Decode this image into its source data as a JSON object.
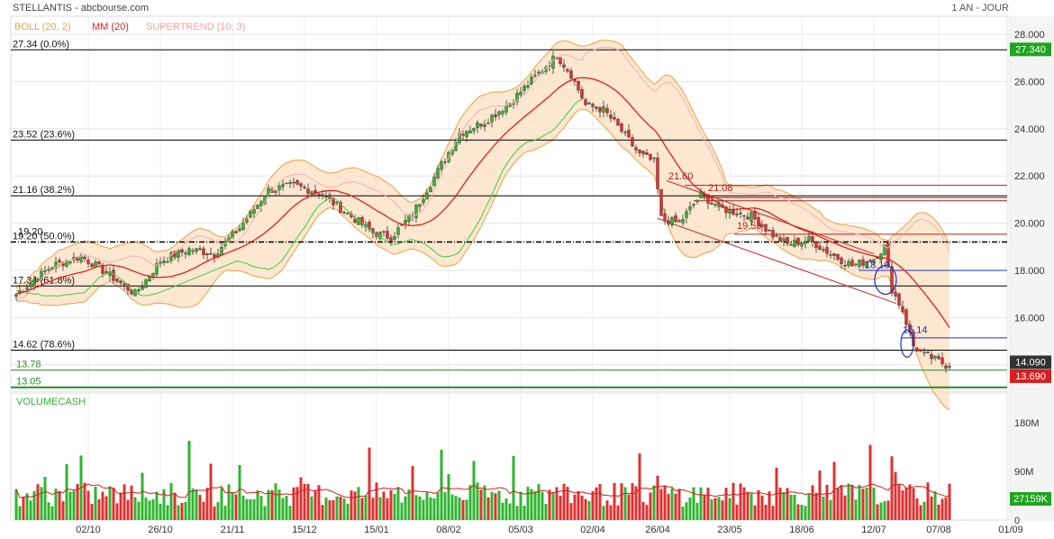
{
  "header": {
    "title": "STELLANTIS - abcbourse.com",
    "period": "1 AN - JOUR",
    "legend": [
      {
        "label": "BOLL (20, 2)",
        "color": "#f0a040"
      },
      {
        "label": "MM (20)",
        "color": "#e02020"
      },
      {
        "label": "SUPERTREND (10, 3)",
        "color": "#f4b0b0"
      }
    ]
  },
  "colors": {
    "up": "#2fb52f",
    "down": "#e03030",
    "fib": "#000000",
    "boll_fill": "#fbe3c8",
    "boll_line": "#f0a040",
    "mm": "#e02020",
    "supertrend": "#f4b0b0",
    "supertrend_up": "#3ccf3c",
    "support": "#2a8a2a",
    "annot_blue": "#2030c0"
  },
  "chart_data": {
    "type": "candlestick",
    "y_axis": {
      "ticks": [
        "28.000",
        "26.000",
        "24.000",
        "22.000",
        "20.000",
        "18.000",
        "16.000",
        "14.000"
      ],
      "range": [
        13.0,
        28.6
      ]
    },
    "x_axis": {
      "ticks": [
        "02/10",
        "26/10",
        "21/11",
        "15/12",
        "15/01",
        "08/02",
        "05/03",
        "02/04",
        "26/04",
        "23/05",
        "18/06",
        "12/07",
        "07/08",
        "01/09"
      ]
    },
    "fibonacci": [
      {
        "price": 27.34,
        "label": "27.34  (0.0%)"
      },
      {
        "price": 23.52,
        "label": "23.52  (23.6%)"
      },
      {
        "price": 21.16,
        "label": "21.16  (38.2%)"
      },
      {
        "price": 19.2,
        "label": "19.20  (50.0%)",
        "label2": "19.20"
      },
      {
        "price": 17.34,
        "label": "17.34  (61.8%)"
      },
      {
        "price": 14.62,
        "label": "14.62  (78.6%)"
      }
    ],
    "support_lines": [
      {
        "price": 13.78,
        "label": "13.78"
      },
      {
        "price": 13.05,
        "label": "13.05"
      }
    ],
    "annotations": [
      {
        "text": "21.60",
        "color": "#b02020"
      },
      {
        "text": "21.08",
        "color": "#b02020"
      },
      {
        "text": "19.53",
        "color": "#b02020"
      },
      {
        "text": "18.10",
        "color": "#2030c0"
      },
      {
        "text": "15.14",
        "color": "#2030c0"
      }
    ],
    "price_badges": [
      {
        "text": "27.340",
        "bg": "#1fa41f"
      },
      {
        "text": "14.090",
        "bg": "#333333"
      },
      {
        "text": "13.690",
        "bg": "#d42020"
      }
    ],
    "anchors": [
      [
        0,
        17.0
      ],
      [
        10,
        18.2
      ],
      [
        18,
        18.6
      ],
      [
        25,
        17.9
      ],
      [
        33,
        17.0
      ],
      [
        40,
        18.4
      ],
      [
        48,
        18.9
      ],
      [
        55,
        18.7
      ],
      [
        62,
        19.8
      ],
      [
        70,
        21.4
      ],
      [
        77,
        21.6
      ],
      [
        84,
        21.3
      ],
      [
        92,
        20.4
      ],
      [
        99,
        19.6
      ],
      [
        104,
        19.4
      ],
      [
        110,
        20.4
      ],
      [
        117,
        22.2
      ],
      [
        123,
        23.8
      ],
      [
        130,
        24.3
      ],
      [
        137,
        25.1
      ],
      [
        144,
        26.2
      ],
      [
        150,
        27.1
      ],
      [
        154,
        26.3
      ],
      [
        158,
        25.0
      ],
      [
        163,
        24.8
      ],
      [
        168,
        23.9
      ],
      [
        173,
        22.9
      ],
      [
        177,
        22.6
      ],
      [
        179,
        20.2
      ],
      [
        184,
        20.0
      ],
      [
        190,
        21.2
      ],
      [
        196,
        20.6
      ],
      [
        204,
        20.3
      ],
      [
        210,
        19.5
      ],
      [
        214,
        19.1
      ],
      [
        220,
        19.3
      ],
      [
        226,
        18.7
      ],
      [
        232,
        18.2
      ],
      [
        238,
        18.5
      ],
      [
        241,
        19.0
      ],
      [
        243,
        17.2
      ],
      [
        246,
        16.3
      ],
      [
        249,
        14.8
      ],
      [
        252,
        14.4
      ],
      [
        254,
        14.3
      ],
      [
        258,
        14.0
      ]
    ],
    "volume": {
      "title": "VOLUMECASH",
      "ticks": [
        "180M",
        "90M",
        "0"
      ],
      "badge": "27159K",
      "max": 200
    }
  }
}
